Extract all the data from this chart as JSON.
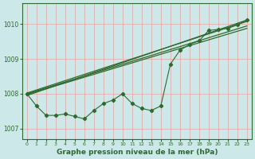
{
  "xlabel": "Graphe pression niveau de la mer (hPa)",
  "bg_color": "#cce8e8",
  "grid_color_v": "#e8a0a0",
  "grid_color_h": "#e8a0a0",
  "line_color": "#2d6a2d",
  "x_min": -0.5,
  "x_max": 23.5,
  "y_min": 1006.7,
  "y_max": 1010.6,
  "yticks": [
    1007,
    1008,
    1009,
    1010
  ],
  "xticks": [
    0,
    1,
    2,
    3,
    4,
    5,
    6,
    7,
    8,
    9,
    10,
    11,
    12,
    13,
    14,
    15,
    16,
    17,
    18,
    19,
    20,
    21,
    22,
    23
  ],
  "series_data": [
    1008.0,
    1007.65,
    1007.38,
    1007.38,
    1007.42,
    1007.35,
    1007.28,
    1007.52,
    1007.72,
    1007.82,
    1008.0,
    1007.72,
    1007.58,
    1007.52,
    1007.65,
    1008.85,
    1009.25,
    1009.42,
    1009.52,
    1009.82,
    1009.85,
    1009.88,
    1009.98,
    1010.12
  ],
  "trend1_x": [
    0,
    23
  ],
  "trend1_y": [
    1007.95,
    1010.12
  ],
  "trend2_x": [
    0,
    23
  ],
  "trend2_y": [
    1008.02,
    1010.08
  ],
  "trend3_x": [
    0,
    23
  ],
  "trend3_y": [
    1008.0,
    1009.95
  ],
  "trend4_x": [
    0,
    23
  ],
  "trend4_y": [
    1007.98,
    1009.88
  ]
}
